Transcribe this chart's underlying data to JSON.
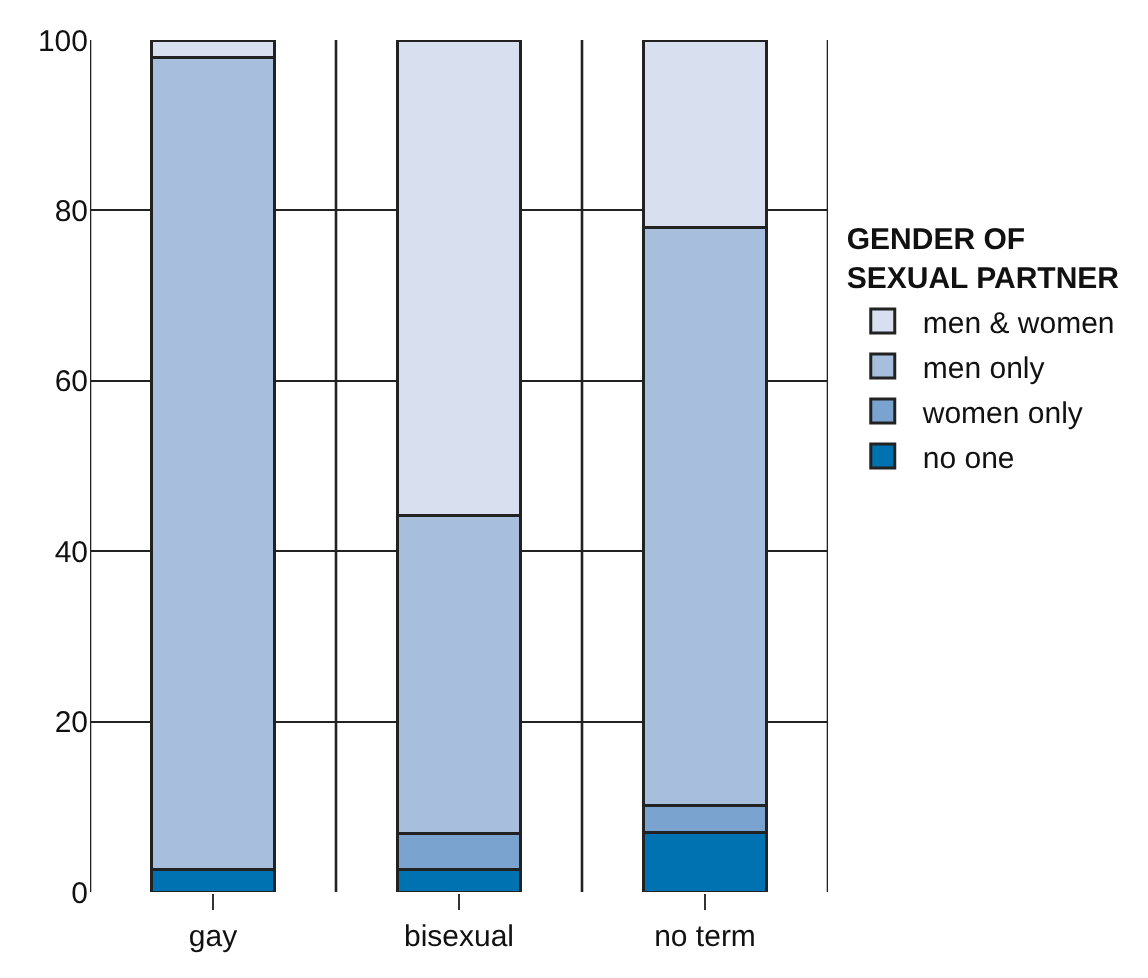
{
  "chart_data": {
    "type": "bar",
    "stacked": true,
    "categories": [
      "gay",
      "bisexual",
      "no term"
    ],
    "series": [
      {
        "name": "no one",
        "color": "#0071b1",
        "values": [
          2.6,
          2.6,
          7
        ]
      },
      {
        "name": "women only",
        "color": "#7ba3cf",
        "values": [
          0,
          4.3,
          3.2
        ]
      },
      {
        "name": "men only",
        "color": "#a8bedd",
        "values": [
          95.4,
          37.3,
          67.8
        ]
      },
      {
        "name": "men & women",
        "color": "#d8dfee",
        "values": [
          2,
          55.8,
          22
        ]
      }
    ],
    "legend_title": "GENDER OF\nSEXUAL PARTNER",
    "legend": "right",
    "ylim": [
      0,
      100
    ],
    "yticks": [
      0,
      20,
      40,
      60,
      80,
      100
    ],
    "grid": true
  }
}
